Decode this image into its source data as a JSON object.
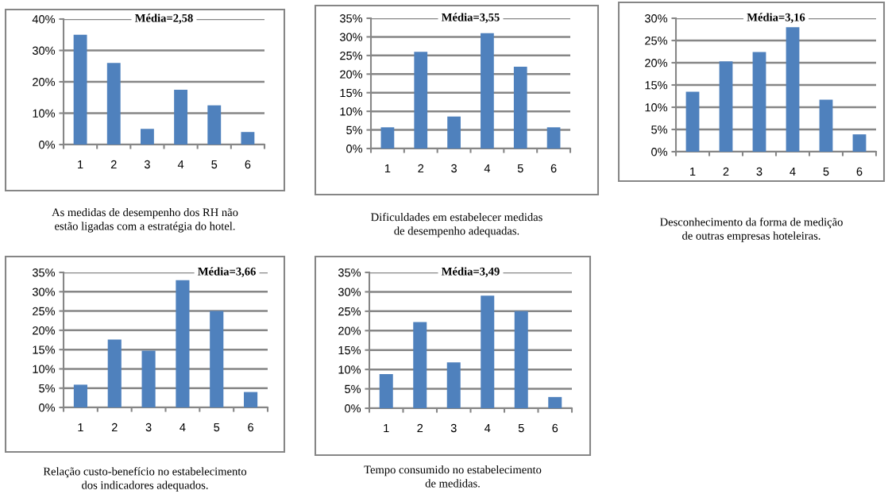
{
  "chart_data": [
    {
      "type": "bar",
      "title": "As medidas de desempenho dos RH não\nestão ligadas com a estratégia do hotel.",
      "annotations": [
        "Média=2,58"
      ],
      "categories": [
        "1",
        "2",
        "3",
        "4",
        "5",
        "6"
      ],
      "values": [
        35,
        26,
        5,
        17.5,
        12.5,
        4
      ],
      "color": "#4f81bd",
      "ylim": [
        0,
        40
      ],
      "yticks": [
        {
          "value": 0,
          "label": "0%"
        },
        {
          "value": 10,
          "label": "10%"
        },
        {
          "value": 20,
          "label": "20%"
        },
        {
          "value": 30,
          "label": "30%"
        },
        {
          "value": 40,
          "label": "40%"
        }
      ],
      "grid": "y",
      "legend": false
    },
    {
      "type": "bar",
      "title": "Dificuldades em estabelecer medidas\nde desempenho adequadas.",
      "annotations": [
        "Média=3,55"
      ],
      "categories": [
        "1",
        "2",
        "3",
        "4",
        "5",
        "6"
      ],
      "values": [
        5.7,
        26,
        8.6,
        31,
        22,
        5.7
      ],
      "color": "#4f81bd",
      "ylim": [
        0,
        35
      ],
      "yticks": [
        {
          "value": 0,
          "label": "0%"
        },
        {
          "value": 5,
          "label": "5%"
        },
        {
          "value": 10,
          "label": "10%"
        },
        {
          "value": 15,
          "label": "15%"
        },
        {
          "value": 20,
          "label": "20%"
        },
        {
          "value": 25,
          "label": "25%"
        },
        {
          "value": 30,
          "label": "30%"
        },
        {
          "value": 35,
          "label": "35%"
        }
      ],
      "grid": "y",
      "legend": false
    },
    {
      "type": "bar",
      "title": "Desconhecimento da forma de medição\nde outras empresas hoteleiras.",
      "annotations": [
        "Média=3,16"
      ],
      "categories": [
        "1",
        "2",
        "3",
        "4",
        "5",
        "6"
      ],
      "values": [
        13.5,
        20.3,
        22.4,
        28,
        11.7,
        3.9
      ],
      "color": "#4f81bd",
      "ylim": [
        0,
        30
      ],
      "yticks": [
        {
          "value": 0,
          "label": "0%"
        },
        {
          "value": 5,
          "label": "5%"
        },
        {
          "value": 10,
          "label": "10%"
        },
        {
          "value": 15,
          "label": "15%"
        },
        {
          "value": 20,
          "label": "20%"
        },
        {
          "value": 25,
          "label": "25%"
        },
        {
          "value": 30,
          "label": "30%"
        }
      ],
      "grid": "y",
      "legend": false
    },
    {
      "type": "bar",
      "title": "Relação custo-benefício no estabelecimento\ndos indicadores adequados.",
      "annotations": [
        "Média=3,66"
      ],
      "categories": [
        "1",
        "2",
        "3",
        "4",
        "5",
        "6"
      ],
      "values": [
        5.9,
        17.6,
        14.7,
        33,
        25,
        4
      ],
      "color": "#4f81bd",
      "ylim": [
        0,
        35
      ],
      "yticks": [
        {
          "value": 0,
          "label": "0%"
        },
        {
          "value": 5,
          "label": "5%"
        },
        {
          "value": 10,
          "label": "10%"
        },
        {
          "value": 15,
          "label": "15%"
        },
        {
          "value": 20,
          "label": "20%"
        },
        {
          "value": 25,
          "label": "25%"
        },
        {
          "value": 30,
          "label": "30%"
        },
        {
          "value": 35,
          "label": "35%"
        }
      ],
      "grid": "y",
      "legend": false
    },
    {
      "type": "bar",
      "title": "Tempo consumido no estabelecimento\nde medidas.",
      "annotations": [
        "Média=3,49"
      ],
      "categories": [
        "1",
        "2",
        "3",
        "4",
        "5",
        "6"
      ],
      "values": [
        8.8,
        22.2,
        11.8,
        29,
        25,
        2.9
      ],
      "color": "#4f81bd",
      "ylim": [
        0,
        35
      ],
      "yticks": [
        {
          "value": 0,
          "label": "0%"
        },
        {
          "value": 5,
          "label": "5%"
        },
        {
          "value": 10,
          "label": "10%"
        },
        {
          "value": 15,
          "label": "15%"
        },
        {
          "value": 20,
          "label": "20%"
        },
        {
          "value": 25,
          "label": "25%"
        },
        {
          "value": 30,
          "label": "30%"
        },
        {
          "value": 35,
          "label": "35%"
        }
      ],
      "grid": "y",
      "legend": false
    }
  ]
}
